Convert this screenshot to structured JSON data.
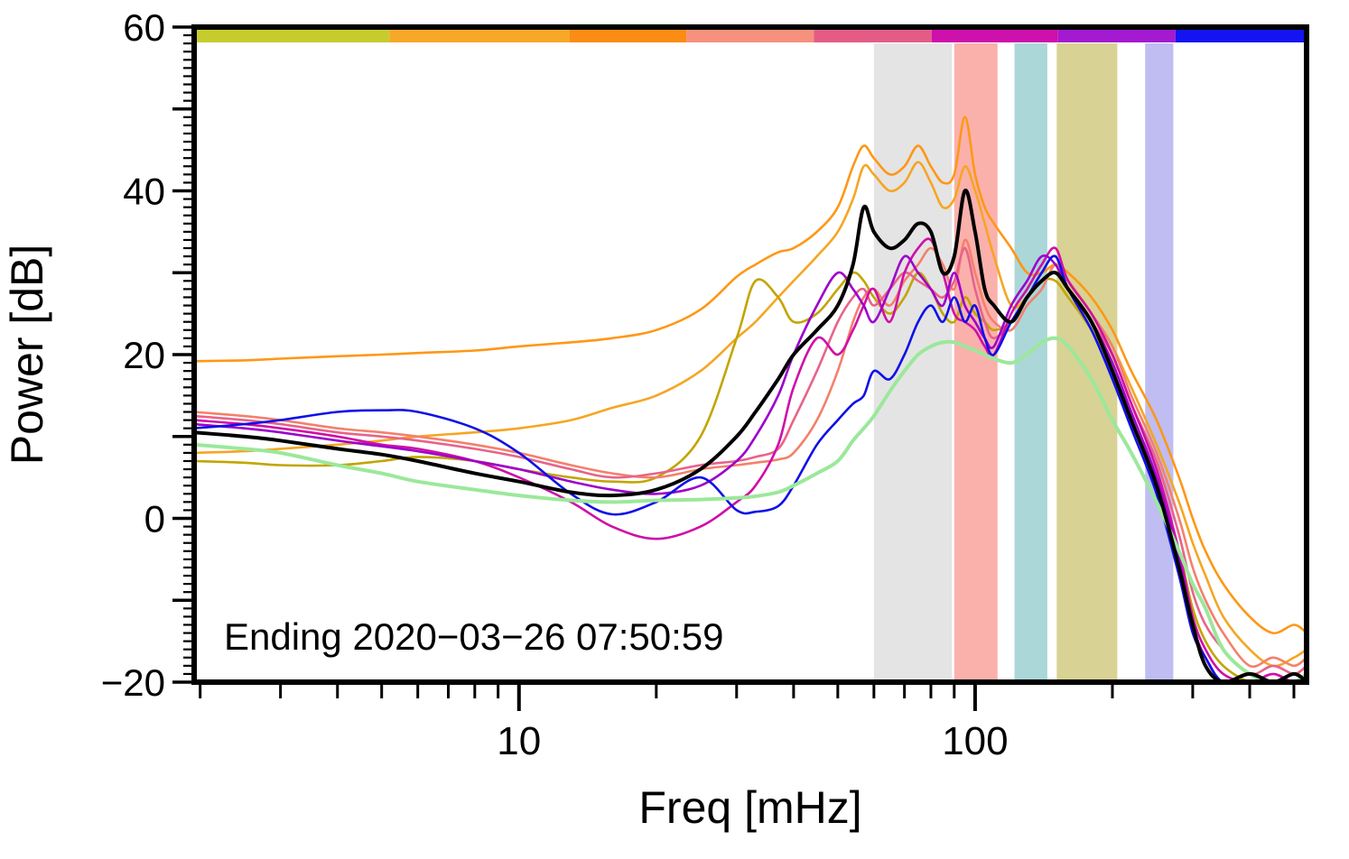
{
  "chart_data": {
    "type": "line",
    "title": "",
    "xlabel": "Freq [mHz]",
    "ylabel": "Power [dB]",
    "annotation": "Ending 2020−03−26 07:50:59",
    "xscale": "log",
    "xlim": [
      1.94,
      533
    ],
    "ylim": [
      -20,
      60
    ],
    "grid": false,
    "legend": "none",
    "yticks": {
      "values": [
        60,
        40,
        20,
        0,
        -20
      ],
      "labels": [
        "60",
        "40",
        "20",
        "0",
        "−20"
      ],
      "major_step": 10,
      "minor_step": 1
    },
    "xticks": {
      "values": [
        10,
        100
      ],
      "labels": [
        "10",
        "100"
      ],
      "minor": [
        2,
        3,
        4,
        5,
        6,
        7,
        8,
        9,
        20,
        30,
        40,
        50,
        60,
        70,
        80,
        90,
        200,
        300,
        400,
        500
      ]
    },
    "bands": [
      {
        "from": 60,
        "to": 89,
        "color": "#e4e4e4",
        "name": "gray-band"
      },
      {
        "from": 90,
        "to": 112,
        "color": "#fab1ac",
        "name": "red-band"
      },
      {
        "from": 122,
        "to": 144,
        "color": "#abd7d9",
        "name": "teal-band"
      },
      {
        "from": 151,
        "to": 205,
        "color": "#d8d294",
        "name": "olive-band"
      },
      {
        "from": 236,
        "to": 272,
        "color": "#bfbdf2",
        "name": "lavender-band"
      }
    ],
    "top_bar": [
      {
        "from": 1.94,
        "to": 5.2,
        "color": "#c6cc2d"
      },
      {
        "from": 5.2,
        "to": 12.9,
        "color": "#f8a829"
      },
      {
        "from": 12.9,
        "to": 23.3,
        "color": "#fb8c14"
      },
      {
        "from": 23.3,
        "to": 44.3,
        "color": "#f5917d"
      },
      {
        "from": 44.3,
        "to": 80.3,
        "color": "#e45c86"
      },
      {
        "from": 80.3,
        "to": 152,
        "color": "#ce10ac"
      },
      {
        "from": 152,
        "to": 275,
        "color": "#a31ad1"
      },
      {
        "from": 275,
        "to": 533,
        "color": "#1414f2"
      }
    ],
    "x": [
      1.94,
      2.5,
      3,
      4,
      5,
      6,
      8,
      10,
      13,
      16,
      20,
      25,
      30,
      33,
      37,
      40,
      45,
      50,
      54,
      57,
      60,
      65,
      70,
      75,
      80,
      85,
      90,
      95,
      100,
      105,
      110,
      120,
      130,
      140,
      150,
      160,
      180,
      200,
      220,
      250,
      280,
      300,
      320,
      350,
      400,
      450,
      500,
      533
    ],
    "series": [
      {
        "name": "orange-high",
        "color": "#ff9715",
        "width": 2.6,
        "values": [
          19.2,
          19.3,
          19.5,
          19.8,
          20,
          20.2,
          20.5,
          21,
          21.5,
          22,
          23,
          25.5,
          29.5,
          31,
          32.5,
          33,
          35,
          38,
          43,
          45.5,
          44,
          42,
          43,
          45.5,
          43,
          41,
          42,
          49,
          42,
          38,
          36,
          33,
          30,
          30,
          31,
          30,
          27,
          23,
          18,
          12,
          5,
          0,
          -4,
          -8,
          -12,
          -14,
          -13,
          -14
        ]
      },
      {
        "name": "orange-low",
        "color": "#f5a623",
        "width": 2.6,
        "values": [
          8,
          8.2,
          8.5,
          9,
          9.5,
          10,
          10.5,
          11,
          12,
          13.5,
          15,
          18,
          22,
          24,
          27,
          29,
          32,
          35,
          39,
          43,
          42,
          40,
          41,
          43.5,
          41,
          38,
          39,
          43,
          40,
          36,
          32,
          26,
          27,
          29,
          30,
          29,
          25,
          21,
          16,
          9,
          2,
          -3,
          -7,
          -12,
          -16,
          -18,
          -17,
          -16
        ]
      },
      {
        "name": "olive",
        "color": "#c2a500",
        "width": 2.6,
        "values": [
          7,
          6.8,
          6.5,
          6.5,
          7,
          7.5,
          7,
          6,
          5,
          4.5,
          5,
          10,
          22,
          29,
          27,
          24,
          25,
          28,
          30,
          29,
          27,
          25,
          27,
          30,
          28,
          25,
          24,
          27,
          25,
          24,
          23,
          24,
          27,
          29,
          29,
          27,
          23,
          18,
          12,
          5,
          -4,
          -11,
          -15,
          -18,
          -20,
          -20,
          -19,
          -20
        ]
      },
      {
        "name": "salmon",
        "color": "#f4806c",
        "width": 2.6,
        "values": [
          13,
          12.5,
          12,
          11,
          10.5,
          10,
          9,
          8,
          6.5,
          5.5,
          5,
          6,
          6.5,
          6.8,
          7.2,
          8,
          12,
          18,
          24,
          27,
          28,
          26,
          29,
          31,
          33,
          31,
          28,
          34,
          30,
          26,
          24,
          23,
          26,
          28,
          31,
          29,
          25,
          21,
          15,
          8,
          0,
          -6,
          -10,
          -14,
          -18,
          -17,
          -18,
          -17
        ]
      },
      {
        "name": "pink",
        "color": "#e8638a",
        "width": 2.6,
        "values": [
          12.5,
          12,
          11.5,
          10.5,
          10,
          9.5,
          8.5,
          7.5,
          6,
          5,
          5.5,
          6.5,
          7,
          7.5,
          8.5,
          12,
          18,
          24,
          27,
          28,
          26,
          28,
          30,
          29,
          28,
          27,
          29,
          33,
          28,
          24,
          22,
          24,
          27,
          30,
          32,
          28,
          24,
          20,
          14,
          7,
          -2,
          -9,
          -13,
          -16,
          -19,
          -18,
          -19,
          -18
        ]
      },
      {
        "name": "magenta",
        "color": "#cf0fa6",
        "width": 2.6,
        "values": [
          12,
          11.5,
          11,
          10,
          9,
          8.5,
          7,
          5,
          2,
          -1,
          -2.5,
          -1,
          2,
          4,
          9,
          16,
          22,
          20,
          23,
          26,
          28,
          24,
          30,
          33,
          34,
          30,
          25,
          24,
          23,
          21,
          20,
          25,
          28,
          31,
          33,
          29,
          25,
          20,
          14,
          6,
          -4,
          -12,
          -16,
          -19,
          -20,
          -19,
          -20,
          -19
        ]
      },
      {
        "name": "violet",
        "color": "#9d00cc",
        "width": 2.6,
        "values": [
          11.5,
          11,
          10.5,
          9.5,
          8.8,
          8.2,
          7,
          6,
          4.5,
          3.5,
          3,
          4,
          7,
          10,
          15,
          20,
          26,
          30,
          28,
          26,
          24,
          28,
          32,
          30,
          28,
          26,
          30,
          26,
          24,
          22,
          21,
          26,
          29,
          32,
          31,
          28,
          24,
          19,
          13,
          5,
          -5,
          -13,
          -17,
          -20,
          -19,
          -20,
          -20,
          -19
        ]
      },
      {
        "name": "blue",
        "color": "#1010e8",
        "width": 2.6,
        "values": [
          11,
          11.5,
          12,
          13,
          13.2,
          13,
          11,
          8,
          3,
          0.5,
          2,
          5,
          1,
          0.8,
          1.5,
          4,
          9,
          12,
          14,
          15,
          18,
          17,
          20,
          24,
          26,
          24,
          27,
          24,
          26,
          22,
          20,
          24,
          27,
          30,
          32,
          28,
          23,
          17,
          11,
          3,
          -7,
          -14,
          -17,
          -20,
          -19,
          -20,
          -20,
          -19
        ]
      },
      {
        "name": "green-mean",
        "color": "#9be89b",
        "width": 4,
        "values": [
          9,
          8.5,
          8,
          6.5,
          5.5,
          4.5,
          3.5,
          2.8,
          2.2,
          2,
          2.2,
          2.3,
          2.5,
          2.7,
          3.2,
          4,
          5.5,
          7,
          9.5,
          11,
          12.5,
          15.5,
          18,
          20,
          21,
          21.5,
          21.5,
          21,
          20.5,
          20,
          19.5,
          19,
          20,
          21.5,
          22,
          21,
          17,
          12,
          8,
          2,
          -4,
          -8,
          -11,
          -16,
          -19,
          -20,
          -20,
          -19
        ]
      },
      {
        "name": "black-mean",
        "color": "#000000",
        "width": 4,
        "values": [
          10.5,
          10,
          9.5,
          8.5,
          7.8,
          7,
          5.5,
          4.5,
          3.2,
          2.8,
          3.5,
          6,
          10,
          13,
          17,
          20,
          23,
          26,
          31,
          38,
          35,
          33,
          34,
          36,
          35,
          30,
          32,
          40,
          35,
          28,
          26,
          24,
          27,
          29,
          30,
          28,
          24,
          18,
          12,
          4,
          -6,
          -13,
          -18,
          -20,
          -19,
          -20,
          -19,
          -20
        ]
      }
    ]
  }
}
